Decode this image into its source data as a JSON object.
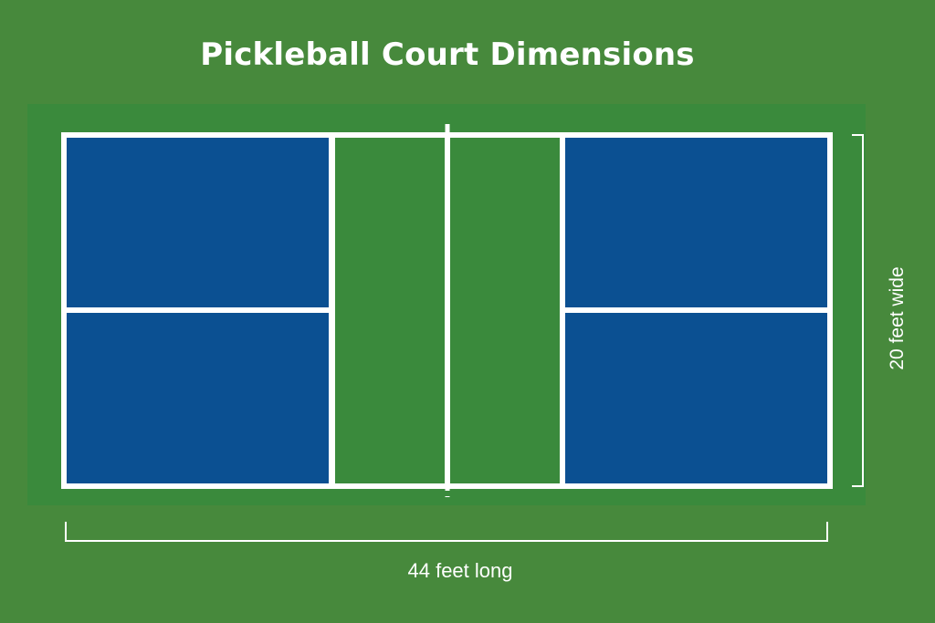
{
  "title": "Pickleball Court Dimensions",
  "court": {
    "width_label": "20 feet wide",
    "length_label": "44 feet long"
  },
  "colors": {
    "background": "#47893c",
    "surround": "#3a8a3c",
    "service_box": "#0b5092",
    "kitchen": "#3a8a3c",
    "line": "#ffffff"
  }
}
